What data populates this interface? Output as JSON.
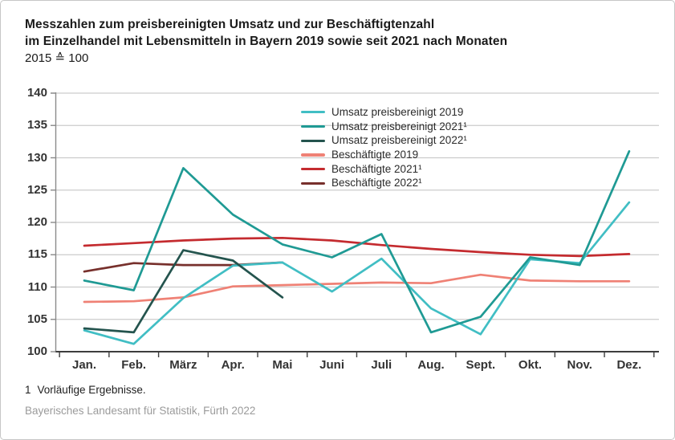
{
  "title": {
    "line1": "Messzahlen zum preisbereinigten Umsatz und zur Beschäftigtenzahl",
    "line2": "im Einzelhandel mit Lebensmitteln in Bayern 2019 sowie seit 2021 nach Monaten",
    "subtitle": "2015 ≙ 100"
  },
  "footnote": {
    "marker": "1",
    "text": "Vorläufige Ergebnisse."
  },
  "source": {
    "text": "Bayerisches Landesamt für Statistik, Fürth 2022"
  },
  "chart_data": {
    "type": "line",
    "grid": true,
    "legend_position": "top-center-inside",
    "ylim": [
      100,
      140
    ],
    "y_ticks": [
      140,
      135,
      130,
      125,
      120,
      115,
      110,
      105,
      100
    ],
    "x_categories": [
      "Jan.",
      "Feb.",
      "März",
      "Apr.",
      "Mai",
      "Juni",
      "Juli",
      "Aug.",
      "Sept.",
      "Okt.",
      "Nov.",
      "Dez."
    ],
    "axis_colors": {
      "gridline": "#cccccc",
      "y_axis": "#8a8a8a",
      "x_axis": "#3d3d3d"
    },
    "series": [
      {
        "name": "Umsatz preisbereinigt 2019",
        "color": "#41bec4",
        "values": [
          103.3,
          101.2,
          108.3,
          113.3,
          113.8,
          109.3,
          114.4,
          106.7,
          102.7,
          114.3,
          113.7,
          123.1
        ]
      },
      {
        "name": "Umsatz preisbereinigt 2021¹",
        "color": "#1f9a94",
        "values": [
          111.0,
          109.5,
          128.4,
          121.2,
          116.6,
          114.6,
          118.2,
          103.0,
          105.4,
          114.6,
          113.4,
          131.0
        ]
      },
      {
        "name": "Umsatz preisbereinigt 2022¹",
        "color": "#24544e",
        "values": [
          103.6,
          103.0,
          115.7,
          114.1,
          108.4
        ]
      },
      {
        "name": "Beschäftigte 2019",
        "color": "#ef8175",
        "values": [
          107.7,
          107.8,
          108.4,
          110.1,
          110.3,
          110.5,
          110.7,
          110.6,
          111.9,
          111.0,
          110.9,
          110.9
        ]
      },
      {
        "name": "Beschäftigte 2021¹",
        "color": "#c42b2f",
        "values": [
          116.4,
          116.8,
          117.2,
          117.5,
          117.6,
          117.2,
          116.5,
          115.9,
          115.4,
          115.0,
          114.8,
          115.1
        ]
      },
      {
        "name": "Beschäftigte 2022¹",
        "color": "#77302c",
        "values": [
          112.4,
          113.7,
          113.4,
          113.4,
          113.8
        ]
      }
    ]
  }
}
